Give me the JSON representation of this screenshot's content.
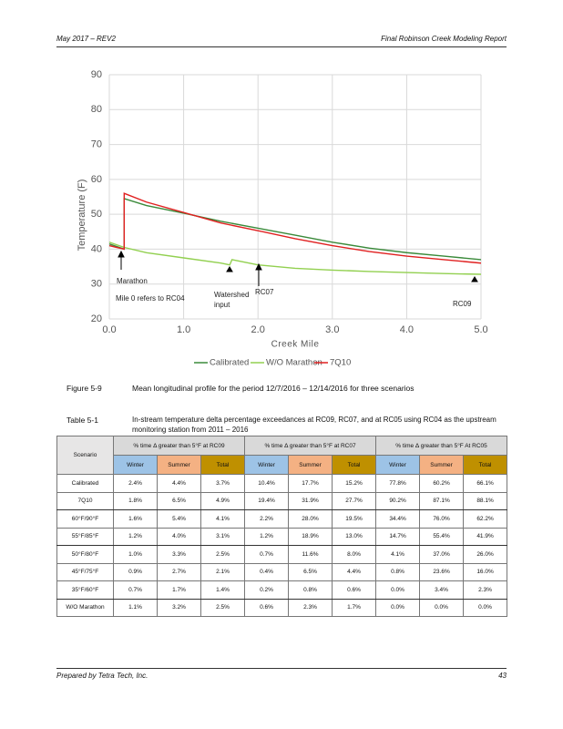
{
  "header": {
    "left": "May 2017 – REV2",
    "right": "Final Robinson Creek Modeling Report"
  },
  "chart_data": {
    "type": "line",
    "x_label": "Creek Mile",
    "y_label": "Temperature (F)",
    "xlim": [
      0,
      5
    ],
    "ylim": [
      20,
      90
    ],
    "xticks": [
      {
        "value": 0,
        "label": "0.0"
      },
      {
        "value": 1,
        "label": "1.0"
      },
      {
        "value": 2,
        "label": "2.0"
      },
      {
        "value": 3,
        "label": "3.0"
      },
      {
        "value": 4,
        "label": "4.0"
      },
      {
        "value": 5,
        "label": "5.0"
      }
    ],
    "yticks": [
      20,
      30,
      40,
      50,
      60,
      70,
      80,
      90
    ],
    "grid": true,
    "legend": "bottom",
    "series": [
      {
        "name": "Calibrated",
        "color": "#3a8a3a",
        "x": [
          0,
          0.2,
          0.2,
          0.5,
          1.0,
          1.5,
          2.0,
          2.5,
          3.0,
          3.5,
          4.0,
          4.5,
          5.0
        ],
        "values": [
          41.5,
          40,
          54.5,
          52.5,
          50.3,
          48,
          46,
          44,
          42,
          40.3,
          39,
          38,
          37
        ]
      },
      {
        "name": "W/O Marathon",
        "color": "#92d050",
        "x": [
          0,
          0.2,
          0.5,
          1.0,
          1.5,
          1.62,
          1.65,
          2.0,
          2.5,
          3.0,
          3.5,
          4.0,
          4.5,
          5.0
        ],
        "values": [
          42,
          40.5,
          39,
          37.5,
          36,
          35.5,
          37,
          35.5,
          34.5,
          34,
          33.6,
          33.3,
          33,
          32.8
        ]
      },
      {
        "name": "7Q10",
        "color": "#e02020",
        "x": [
          0,
          0.2,
          0.2,
          0.5,
          1.0,
          1.5,
          2.0,
          2.5,
          3.0,
          3.5,
          4.0,
          4.5,
          5.0
        ],
        "values": [
          41,
          40,
          56,
          53.5,
          50.5,
          47.5,
          45.3,
          43,
          41,
          39.3,
          38,
          37,
          36
        ]
      }
    ],
    "annotations": [
      "Marathon",
      "Mile 0 refers to RC04",
      "Watershed input",
      "RC07",
      "RC09"
    ]
  },
  "figure_caption": {
    "label": "Figure 5-9",
    "text": "Mean longitudinal profile for the period 12/7/2016 – 12/14/2016 for three scenarios"
  },
  "table_caption": {
    "label": "Table 5-1",
    "text": "In-stream temperature delta percentage exceedances at RC09, RC07, and at RC05 using RC04 as the upstream monitoring station from 2011 – 2016"
  },
  "table": {
    "corner": "Scenario",
    "groups": [
      "% time Δ greater than 5°F at RC09",
      "% time Δ greater than 5°F at RC07",
      "% time Δ greater than 5°F At RC05"
    ],
    "subheaders": [
      "Winter",
      "Summer",
      "Total",
      "Winter",
      "Summer",
      "Total",
      "Winter",
      "Summer",
      "Total"
    ],
    "rows": [
      [
        "Calibrated",
        "2.4%",
        "4.4%",
        "3.7%",
        "10.4%",
        "17.7%",
        "15.2%",
        "77.8%",
        "60.2%",
        "66.1%"
      ],
      [
        "7Q10",
        "1.8%",
        "6.5%",
        "4.9%",
        "19.4%",
        "31.9%",
        "27.7%",
        "90.2%",
        "87.1%",
        "88.1%"
      ],
      [
        "60°F/90°F",
        "1.6%",
        "5.4%",
        "4.1%",
        "2.2%",
        "28.0%",
        "19.5%",
        "34.4%",
        "76.0%",
        "62.2%"
      ],
      [
        "55°F/85°F",
        "1.2%",
        "4.0%",
        "3.1%",
        "1.2%",
        "18.9%",
        "13.0%",
        "14.7%",
        "55.4%",
        "41.9%"
      ],
      [
        "50°F/80°F",
        "1.0%",
        "3.3%",
        "2.5%",
        "0.7%",
        "11.6%",
        "8.0%",
        "4.1%",
        "37.0%",
        "26.0%"
      ],
      [
        "45°F/75°F",
        "0.9%",
        "2.7%",
        "2.1%",
        "0.4%",
        "6.5%",
        "4.4%",
        "0.8%",
        "23.6%",
        "16.0%"
      ],
      [
        "35°F/60°F",
        "0.7%",
        "1.7%",
        "1.4%",
        "0.2%",
        "0.8%",
        "0.6%",
        "0.0%",
        "3.4%",
        "2.3%"
      ],
      [
        "W/O Marathon",
        "1.1%",
        "3.2%",
        "2.5%",
        "0.6%",
        "2.3%",
        "1.7%",
        "0.0%",
        "0.0%",
        "0.0%"
      ]
    ]
  },
  "footer": {
    "left": "Prepared by Tetra Tech, Inc.",
    "right": "43"
  }
}
